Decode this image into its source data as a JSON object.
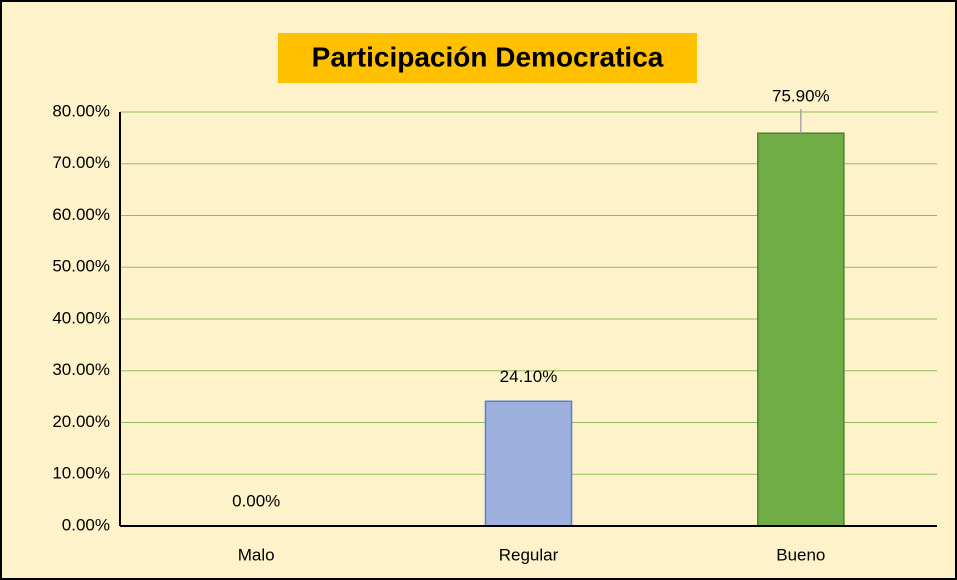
{
  "chart_data": {
    "type": "bar",
    "title": "Participación Democratica",
    "categories": [
      "Malo",
      "Regular",
      "Bueno"
    ],
    "values": [
      0,
      24.1,
      75.9
    ],
    "value_labels": [
      "0.00%",
      "24.10%",
      "75.90%"
    ],
    "colors": [
      null,
      "#9db0de",
      "#70ad47"
    ],
    "ylim": [
      0,
      80
    ],
    "yticks": [
      {
        "value": 0,
        "label": "0.00%"
      },
      {
        "value": 10,
        "label": "10.00%"
      },
      {
        "value": 20,
        "label": "20.00%"
      },
      {
        "value": 30,
        "label": "30.00%"
      },
      {
        "value": 40,
        "label": "40.00%"
      },
      {
        "value": 50,
        "label": "50.00%"
      },
      {
        "value": 60,
        "label": "60.00%"
      },
      {
        "value": 70,
        "label": "70.00%"
      },
      {
        "value": 80,
        "label": "80.00%"
      }
    ],
    "grid": true
  }
}
